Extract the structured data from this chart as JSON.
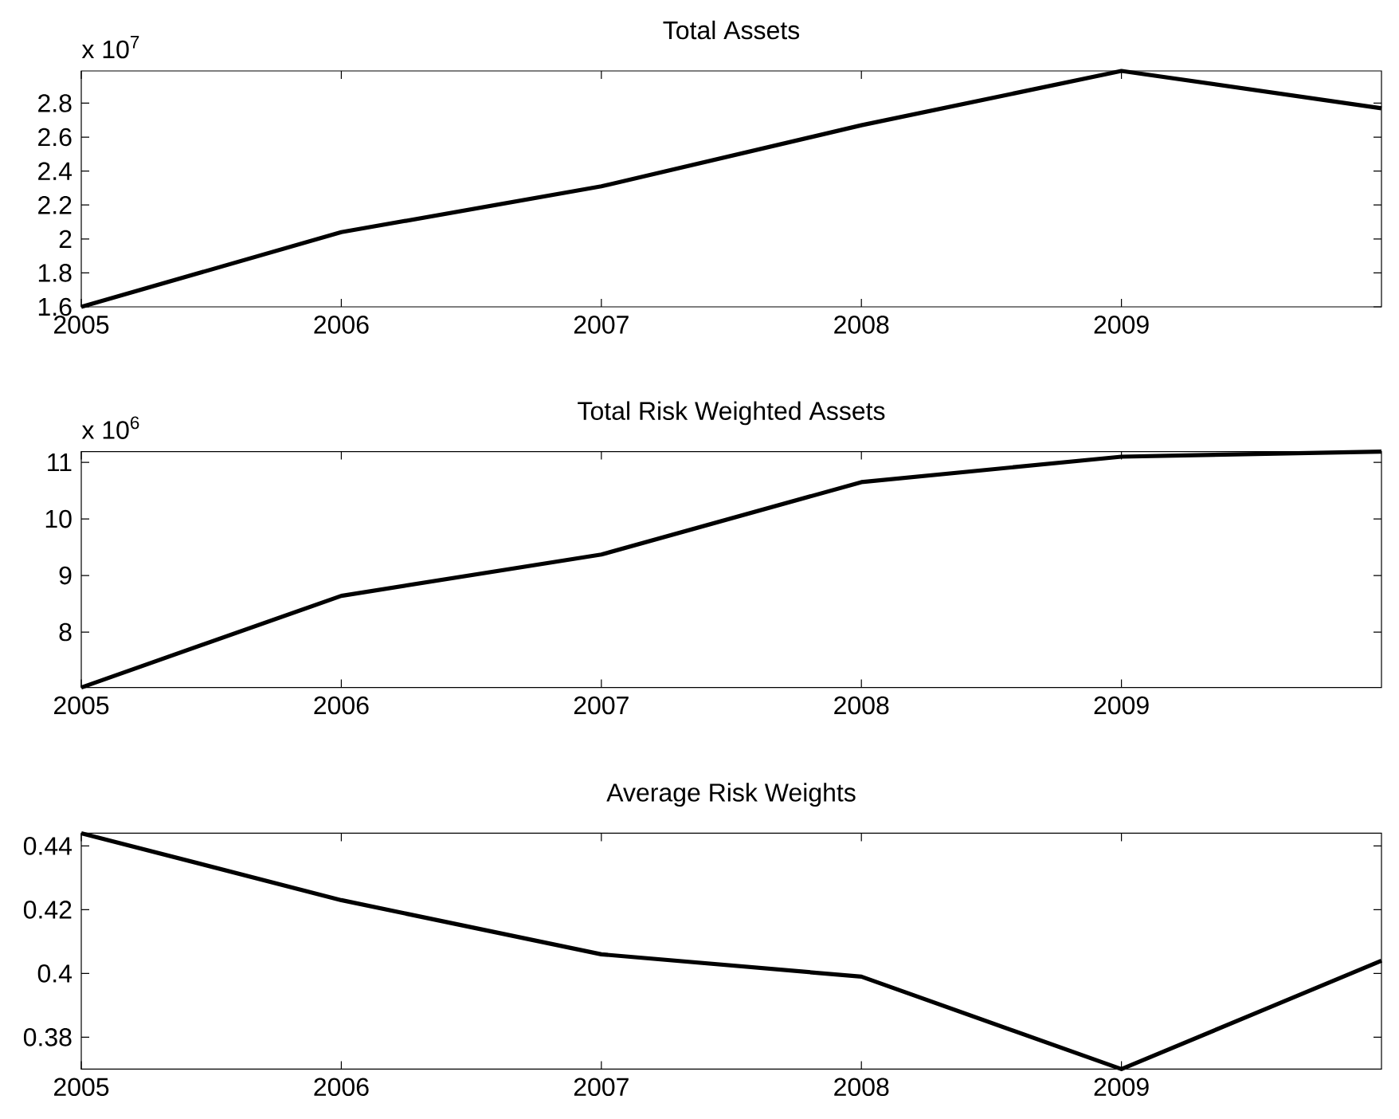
{
  "chart_data": [
    {
      "type": "line",
      "title": "Total Assets",
      "annotations": [
        "x 10$^{7}$"
      ],
      "x": [
        2005,
        2006,
        2007,
        2008,
        2009,
        2010
      ],
      "values": [
        1.6,
        2.04,
        2.31,
        2.67,
        2.99,
        2.77
      ],
      "color": "#000000",
      "xlim": [
        2005,
        2010
      ],
      "xticks": [
        2005,
        2006,
        2007,
        2008,
        2009
      ],
      "ylim": [
        1.6,
        2.99
      ],
      "yticks": [
        1.6,
        1.8,
        2,
        2.2,
        2.4,
        2.6,
        2.8
      ]
    },
    {
      "type": "line",
      "title": "Total Risk Weighted Assets",
      "annotations": [
        "x 10$^{6}$"
      ],
      "x": [
        2005,
        2006,
        2007,
        2008,
        2009,
        2010
      ],
      "values": [
        7.02,
        8.64,
        9.37,
        10.65,
        11.1,
        11.19
      ],
      "color": "#000000",
      "xlim": [
        2005,
        2010
      ],
      "xticks": [
        2005,
        2006,
        2007,
        2008,
        2009
      ],
      "ylim": [
        7.02,
        11.19
      ],
      "yticks": [
        8,
        9,
        10,
        11
      ]
    },
    {
      "type": "line",
      "title": "Average Risk Weights",
      "x": [
        2005,
        2006,
        2007,
        2008,
        2009,
        2010
      ],
      "values": [
        0.444,
        0.423,
        0.406,
        0.399,
        0.37,
        0.404
      ],
      "color": "#000000",
      "xlim": [
        2005,
        2010
      ],
      "xticks": [
        2005,
        2006,
        2007,
        2008,
        2009
      ],
      "ylim": [
        0.37,
        0.444
      ],
      "yticks": [
        0.38,
        0.4,
        0.42,
        0.44
      ]
    }
  ]
}
